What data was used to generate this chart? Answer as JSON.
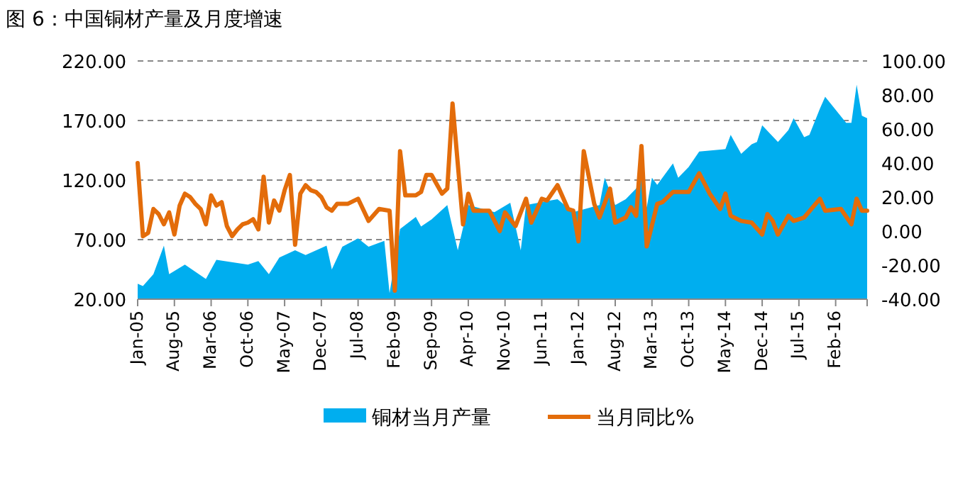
{
  "chart_data": {
    "type": "area",
    "title": "图 6：中国铜材产量及月度增速",
    "xlim": [
      "2005-01",
      "2016-08"
    ],
    "xticks": [
      {
        "value": "2005-01",
        "label": "Jan-05"
      },
      {
        "value": "2005-08",
        "label": "Aug-05"
      },
      {
        "value": "2006-03",
        "label": "Mar-06"
      },
      {
        "value": "2006-10",
        "label": "Oct-06"
      },
      {
        "value": "2007-05",
        "label": "May-07"
      },
      {
        "value": "2007-12",
        "label": "Dec-07"
      },
      {
        "value": "2008-07",
        "label": "Jul-08"
      },
      {
        "value": "2009-02",
        "label": "Feb-09"
      },
      {
        "value": "2009-09",
        "label": "Sep-09"
      },
      {
        "value": "2010-04",
        "label": "Apr-10"
      },
      {
        "value": "2010-11",
        "label": "Nov-10"
      },
      {
        "value": "2011-06",
        "label": "Jun-11"
      },
      {
        "value": "2012-01",
        "label": "Jan-12"
      },
      {
        "value": "2012-08",
        "label": "Aug-12"
      },
      {
        "value": "2013-03",
        "label": "Mar-13"
      },
      {
        "value": "2013-10",
        "label": "Oct-13"
      },
      {
        "value": "2014-05",
        "label": "May-14"
      },
      {
        "value": "2014-12",
        "label": "Dec-14"
      },
      {
        "value": "2015-07",
        "label": "Jul-15"
      },
      {
        "value": "2016-02",
        "label": "Feb-16"
      },
      {
        "value": "2016-08",
        "label": null
      }
    ],
    "ylim": [
      20,
      220
    ],
    "yticks": [
      {
        "value": 20,
        "label": "20.00"
      },
      {
        "value": 70,
        "label": "70.00"
      },
      {
        "value": 120,
        "label": "120.00"
      },
      {
        "value": 170,
        "label": "170.00"
      },
      {
        "value": 220,
        "label": "220.00"
      }
    ],
    "y2lim": [
      -40,
      100
    ],
    "y2ticks": [
      {
        "value": -40,
        "label": "-40.00"
      },
      {
        "value": -20,
        "label": "-20.00"
      },
      {
        "value": 0,
        "label": "0.00"
      },
      {
        "value": 20,
        "label": "20.00"
      },
      {
        "value": 40,
        "label": "40.00"
      },
      {
        "value": 60,
        "label": "60.00"
      },
      {
        "value": 80,
        "label": "80.00"
      },
      {
        "value": 100,
        "label": "100.00"
      }
    ],
    "grid": "y",
    "legend": "bottom",
    "series": [
      {
        "name": "铜材当月产量",
        "color": "#00aeef",
        "x": [
          "2005-01",
          "2005-02",
          "2005-04",
          "2005-06",
          "2005-07",
          "2005-10",
          "2006-02",
          "2006-04",
          "2006-10",
          "2006-12",
          "2007-02",
          "2007-04",
          "2007-07",
          "2007-09",
          "2008-01",
          "2008-02",
          "2008-04",
          "2008-07",
          "2008-09",
          "2008-12",
          "2009-01",
          "2009-03",
          "2009-06",
          "2009-07",
          "2009-09",
          "2009-12",
          "2010-02",
          "2010-04",
          "2010-09",
          "2010-12",
          "2011-02",
          "2011-03",
          "2011-09",
          "2011-12",
          "2012-05",
          "2012-06",
          "2012-08",
          "2012-10",
          "2012-12",
          "2013-01",
          "2013-02",
          "2013-03",
          "2013-04",
          "2013-07",
          "2013-08",
          "2013-10",
          "2013-12",
          "2014-05",
          "2014-06",
          "2014-08",
          "2014-10",
          "2014-11",
          "2014-12",
          "2015-03",
          "2015-05",
          "2015-06",
          "2015-08",
          "2015-09",
          "2015-11",
          "2015-12",
          "2016-04",
          "2016-05",
          "2016-06",
          "2016-07",
          "2016-08"
        ],
        "values": [
          33,
          31,
          41,
          65,
          41,
          49,
          37,
          53,
          49,
          52,
          41,
          55,
          61,
          57,
          65,
          45,
          64,
          71,
          64,
          69,
          25,
          79,
          89,
          81,
          87,
          99,
          61,
          99,
          93,
          101,
          61,
          99,
          104,
          93,
          99,
          122,
          99,
          104,
          113,
          125,
          97,
          122,
          116,
          134,
          122,
          131,
          144,
          146,
          158,
          142,
          150,
          152,
          166,
          152,
          162,
          172,
          156,
          158,
          180,
          190,
          168,
          168,
          200,
          174,
          172
        ]
      },
      {
        "name": "当月同比%",
        "type": "line",
        "axis": "y2",
        "color": "#e36c0a",
        "x": [
          "2005-01",
          "2005-02",
          "2005-03",
          "2005-04",
          "2005-05",
          "2005-06",
          "2005-07",
          "2005-08",
          "2005-09",
          "2005-10",
          "2005-11",
          "2005-12",
          "2006-01",
          "2006-02",
          "2006-03",
          "2006-04",
          "2006-05",
          "2006-06",
          "2006-07",
          "2006-08",
          "2006-09",
          "2006-10",
          "2006-11",
          "2006-12",
          "2007-01",
          "2007-02",
          "2007-03",
          "2007-04",
          "2007-05",
          "2007-06",
          "2007-07",
          "2007-08",
          "2007-09",
          "2007-10",
          "2007-11",
          "2007-12",
          "2008-01",
          "2008-02",
          "2008-03",
          "2008-05",
          "2008-07",
          "2008-09",
          "2008-11",
          "2009-01",
          "2009-02",
          "2009-03",
          "2009-04",
          "2009-06",
          "2009-07",
          "2009-08",
          "2009-09",
          "2009-11",
          "2009-12",
          "2010-01",
          "2010-03",
          "2010-04",
          "2010-05",
          "2010-08",
          "2010-10",
          "2010-11",
          "2011-01",
          "2011-03",
          "2011-04",
          "2011-06",
          "2011-07",
          "2011-09",
          "2011-11",
          "2011-12",
          "2012-01",
          "2012-02",
          "2012-04",
          "2012-05",
          "2012-07",
          "2012-08",
          "2012-10",
          "2012-11",
          "2012-12",
          "2013-01",
          "2013-02",
          "2013-04",
          "2013-05",
          "2013-07",
          "2013-10",
          "2013-12",
          "2014-02",
          "2014-04",
          "2014-05",
          "2014-06",
          "2014-08",
          "2014-10",
          "2014-12",
          "2015-01",
          "2015-02",
          "2015-03",
          "2015-05",
          "2015-06",
          "2015-08",
          "2015-11",
          "2015-12",
          "2016-03",
          "2016-05",
          "2016-06",
          "2016-07",
          "2016-08"
        ],
        "values": [
          40,
          -3,
          -1,
          13,
          10,
          4,
          11,
          -2,
          15,
          22,
          20,
          16,
          13,
          4,
          21,
          15,
          17,
          3,
          -3,
          1,
          4,
          5,
          7,
          1,
          32,
          5,
          18,
          12,
          24,
          33,
          -8,
          22,
          27,
          24,
          23,
          20,
          14,
          12,
          16,
          16,
          19,
          6,
          13,
          12,
          -35,
          47,
          21,
          21,
          23,
          33,
          33,
          22,
          25,
          75,
          4,
          22,
          12,
          12,
          0,
          11,
          3,
          19,
          5,
          19,
          18,
          27,
          13,
          12,
          -6,
          47,
          16,
          8,
          25,
          5,
          8,
          14,
          9,
          50,
          -9,
          16,
          17,
          23,
          23,
          34,
          22,
          13,
          22,
          9,
          6,
          5,
          -2,
          10,
          6,
          -2,
          9,
          6,
          8,
          19,
          12,
          13,
          4,
          19,
          12,
          12
        ]
      }
    ]
  }
}
